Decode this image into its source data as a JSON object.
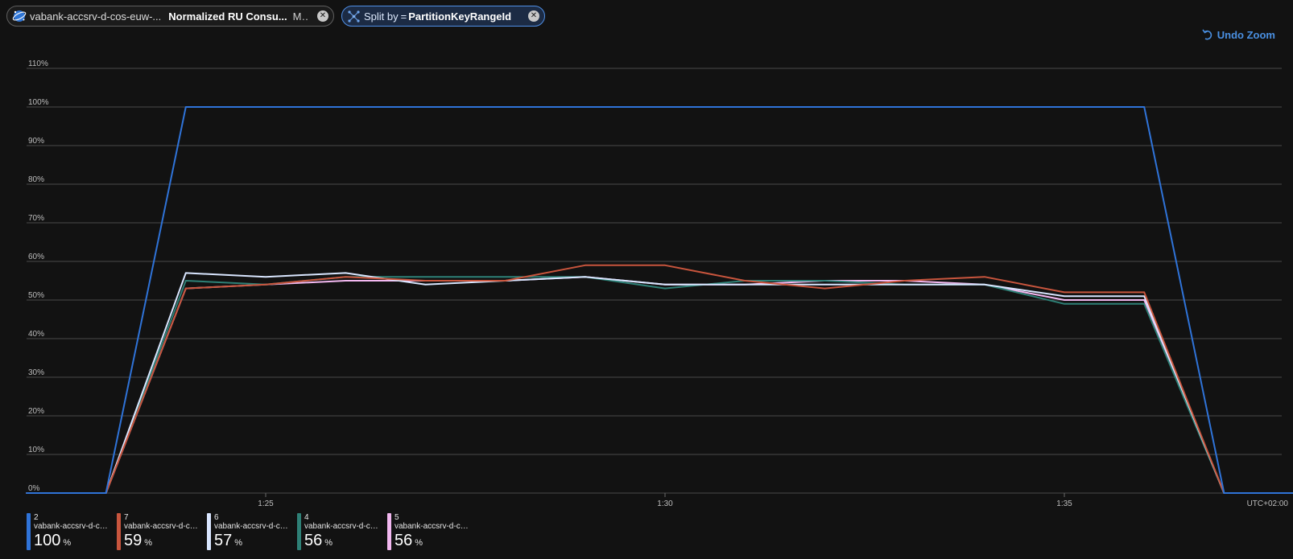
{
  "filter_pills": {
    "metric": {
      "resource": "vabank-accsrv-d-cos-euw-...",
      "metric": "Normalized RU Consu...",
      "aggregation": "M..."
    },
    "split": {
      "label": "Split by",
      "value": "PartitionKeyRangeId"
    }
  },
  "toolbar": {
    "undo_zoom_label": "Undo Zoom"
  },
  "colors": {
    "series_2": "#2f73d8",
    "series_7": "#c8553d",
    "series_6": "#d9e6ff",
    "series_4": "#2e8076",
    "series_5": "#f2b8f0"
  },
  "chart_data": {
    "type": "line",
    "title": "",
    "xlabel": "",
    "ylabel": "",
    "timezone_label": "UTC+02:00",
    "y_ticks": [
      "0%",
      "10%",
      "20%",
      "30%",
      "40%",
      "50%",
      "60%",
      "70%",
      "80%",
      "90%",
      "100%",
      "110%"
    ],
    "ylim": [
      0,
      110
    ],
    "x_ticks": [
      {
        "label": "1:25",
        "minute": 25
      },
      {
        "label": "1:30",
        "minute": 30
      },
      {
        "label": "1:35",
        "minute": 35
      }
    ],
    "x_minutes": [
      22,
      23,
      24,
      25,
      26,
      27,
      28,
      29,
      30,
      31,
      32,
      33,
      34,
      35,
      36,
      37,
      38
    ],
    "series": [
      {
        "name": "2",
        "resource": "vabank-accsrv-d-cos-...",
        "summary": "100",
        "unit": "%",
        "color": "#2f73d8",
        "values": [
          0,
          0,
          100,
          100,
          100,
          100,
          100,
          100,
          100,
          100,
          100,
          100,
          100,
          100,
          100,
          0,
          0
        ]
      },
      {
        "name": "7",
        "resource": "vabank-accsrv-d-cos-...",
        "summary": "59",
        "unit": "%",
        "color": "#c8553d",
        "values": [
          0,
          0,
          53,
          54,
          56,
          55,
          55,
          59,
          59,
          55,
          53,
          55,
          56,
          52,
          52,
          0,
          0
        ]
      },
      {
        "name": "6",
        "resource": "vabank-accsrv-d-cos-...",
        "summary": "57",
        "unit": "%",
        "color": "#d9e6ff",
        "values": [
          0,
          0,
          57,
          56,
          57,
          54,
          55,
          56,
          54,
          54,
          54,
          54,
          54,
          51,
          51,
          0,
          0
        ]
      },
      {
        "name": "4",
        "resource": "vabank-accsrv-d-cos-...",
        "summary": "56",
        "unit": "%",
        "color": "#2e8076",
        "values": [
          0,
          0,
          55,
          54,
          56,
          56,
          56,
          56,
          53,
          55,
          55,
          54,
          54,
          49,
          49,
          0,
          0
        ]
      },
      {
        "name": "5",
        "resource": "vabank-accsrv-d-cos-...",
        "summary": "56",
        "unit": "%",
        "color": "#f2b8f0",
        "values": [
          0,
          0,
          53,
          54,
          55,
          55,
          55,
          56,
          54,
          54,
          55,
          55,
          54,
          50,
          50,
          0,
          0
        ]
      }
    ]
  }
}
